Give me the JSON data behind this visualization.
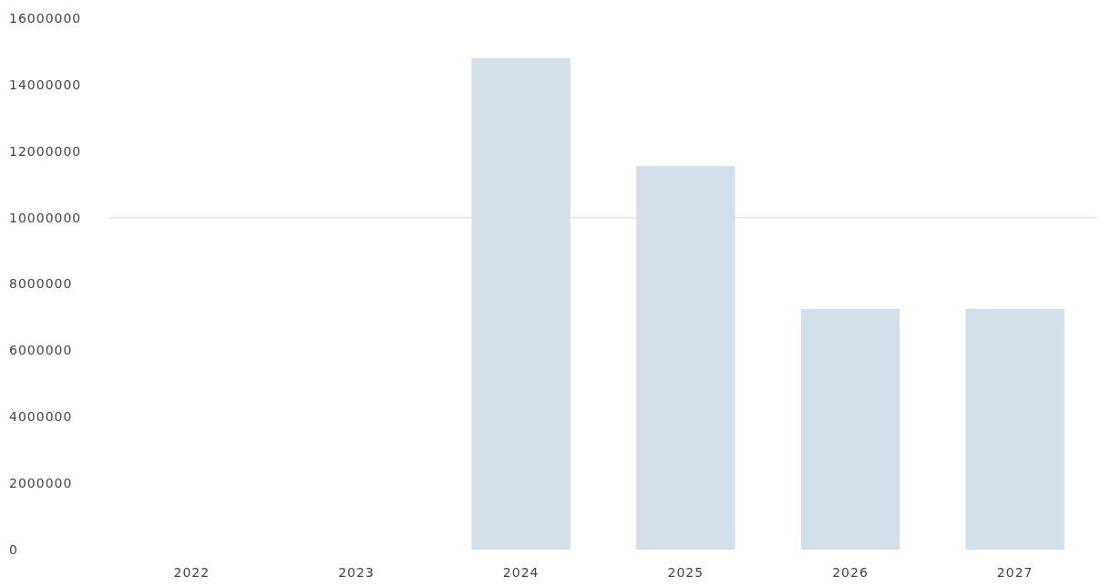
{
  "chart_data": {
    "type": "bar",
    "categories": [
      "2022",
      "2023",
      "2024",
      "2025",
      "2026",
      "2027"
    ],
    "values": [
      null,
      null,
      14800000,
      11550000,
      7250000,
      7250000
    ],
    "color": "#d3dfe9",
    "ylim": [
      0,
      16000000
    ],
    "yticks": [
      0,
      2000000,
      4000000,
      6000000,
      8000000,
      10000000,
      12000000,
      14000000,
      16000000
    ],
    "ref_lines": [
      {
        "axis": "y",
        "value": 10000000,
        "color": "#e6e6e6"
      }
    ]
  }
}
